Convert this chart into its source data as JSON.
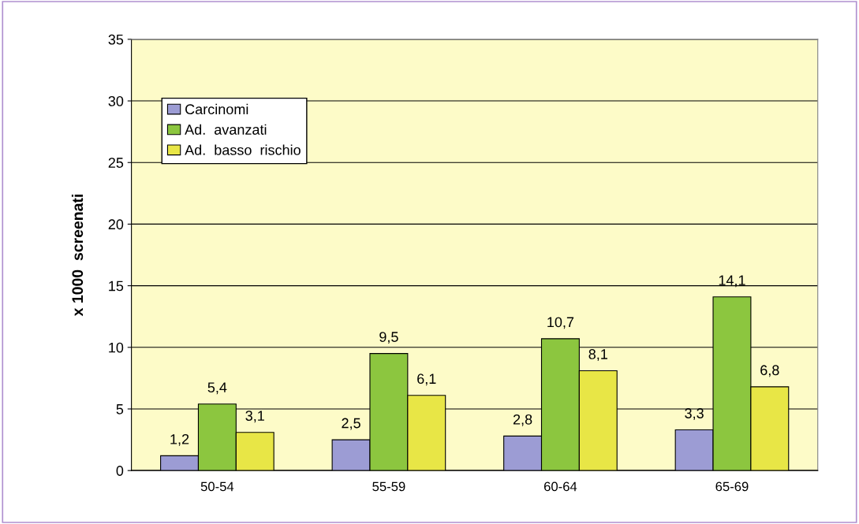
{
  "chart_data": {
    "type": "bar",
    "ylabel": "x 1000  screenati",
    "categories": [
      "50-54",
      "55-59",
      "60-64",
      "65-69"
    ],
    "series": [
      {
        "name": "Carcinomi",
        "color": "#9c9cd4",
        "values": [
          1.2,
          2.5,
          2.8,
          3.3
        ],
        "value_labels": [
          "1,2",
          "2,5",
          "2,8",
          "3,3"
        ]
      },
      {
        "name": "Ad.  avanzati",
        "color": "#8cc63f",
        "values": [
          5.4,
          9.5,
          10.7,
          14.1
        ],
        "value_labels": [
          "5,4",
          "9,5",
          "10,7",
          "14,1"
        ]
      },
      {
        "name": "Ad.  basso  rischio",
        "color": "#e8e646",
        "values": [
          3.1,
          6.1,
          8.1,
          6.8
        ],
        "value_labels": [
          "3,1",
          "6,1",
          "8,1",
          "6,8"
        ]
      }
    ],
    "ylim": [
      0,
      35
    ],
    "yticks": [
      0,
      5,
      10,
      15,
      20,
      25,
      30,
      35
    ],
    "grid": "y",
    "legend": "top left"
  }
}
